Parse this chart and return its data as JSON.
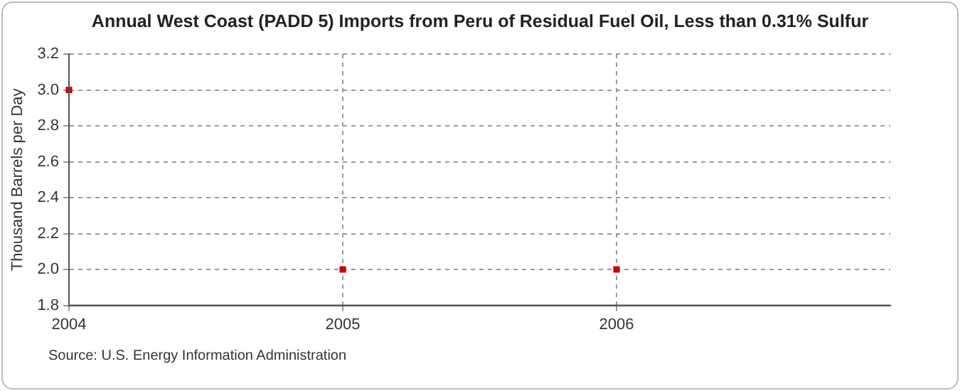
{
  "chart_data": {
    "type": "scatter",
    "title": "Annual West Coast (PADD 5) Imports from Peru of Residual Fuel Oil, Less than 0.31% Sulfur",
    "ylabel": "Thousand Barrels per Day",
    "x": [
      2004,
      2005,
      2006
    ],
    "series": [
      {
        "color": "#cc0000",
        "values": [
          3.0,
          2.0,
          2.0
        ]
      }
    ],
    "xlim": [
      2004,
      2007
    ],
    "xticks": [
      2004,
      2005,
      2006
    ],
    "ylim": [
      1.8,
      3.2
    ],
    "yticks": [
      1.8,
      {
        "value": 2,
        "label": "2.0"
      },
      2.2,
      2.4,
      2.6,
      2.8,
      {
        "value": 3,
        "label": "3.0"
      },
      3.2
    ],
    "grid": true,
    "marker": "square",
    "legend": false,
    "annotations": [
      "Source: U.S. Energy Information Administration"
    ]
  }
}
